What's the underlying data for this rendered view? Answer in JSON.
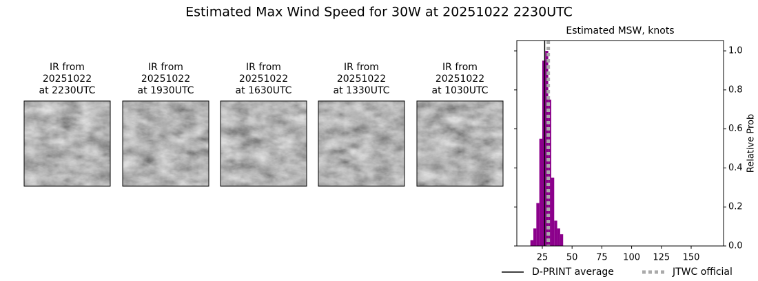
{
  "title": "Estimated Max Wind Speed for 30W at 20251022 2230UTC",
  "panels": [
    {
      "lines": [
        "IR from",
        "20251022",
        "at 2230UTC"
      ]
    },
    {
      "lines": [
        "IR from",
        "20251022",
        "at 1930UTC"
      ]
    },
    {
      "lines": [
        "IR from",
        "20251022",
        "at 1630UTC"
      ]
    },
    {
      "lines": [
        "IR from",
        "20251022",
        "at 1330UTC"
      ]
    },
    {
      "lines": [
        "IR from",
        "20251022",
        "at 1030UTC"
      ]
    }
  ],
  "chart_data": {
    "type": "histogram",
    "title": "Estimated MSW, knots",
    "y_label": "Relative Prob",
    "y_axis_side": "right",
    "bins": [
      15,
      17.5,
      20,
      22.5,
      25,
      27.5,
      30,
      32.5,
      35,
      37.5,
      40,
      42.5
    ],
    "values": [
      0.03,
      0.09,
      0.22,
      0.55,
      0.95,
      1.0,
      0.75,
      0.35,
      0.13,
      0.09,
      0.06
    ],
    "color": "#8b008b",
    "xlim": [
      3.6,
      177.2
    ],
    "xticks": [
      25,
      50,
      75,
      100,
      125,
      150
    ],
    "ylim": [
      0,
      1.053
    ],
    "yticks": [
      {
        "value": 0,
        "label": "0.0"
      },
      {
        "value": 0.2,
        "label": "0.2"
      },
      {
        "value": 0.4,
        "label": "0.4"
      },
      {
        "value": 0.6,
        "label": "0.6"
      },
      {
        "value": 0.8,
        "label": "0.8"
      },
      {
        "value": 1.0,
        "label": "1.0"
      }
    ],
    "markers": [
      {
        "name": "D-PRINT average",
        "value": 27,
        "color": "#000000",
        "style": "solid"
      },
      {
        "name": "JTWC official",
        "value": 30,
        "color": "#aaaaaa",
        "style": "dotted"
      }
    ]
  }
}
